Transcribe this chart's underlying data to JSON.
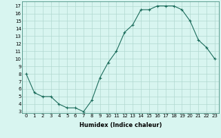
{
  "x": [
    0,
    1,
    2,
    3,
    4,
    5,
    6,
    7,
    8,
    9,
    10,
    11,
    12,
    13,
    14,
    15,
    16,
    17,
    18,
    19,
    20,
    21,
    22,
    23
  ],
  "y": [
    8.0,
    5.5,
    5.0,
    5.0,
    4.0,
    3.5,
    3.5,
    3.0,
    4.5,
    7.5,
    9.5,
    11.0,
    13.5,
    14.5,
    16.5,
    16.5,
    17.0,
    17.0,
    17.0,
    16.5,
    15.0,
    12.5,
    11.5,
    10.0
  ],
  "line_color": "#1a6b5a",
  "marker": "+",
  "marker_size": 3,
  "bg_color": "#d8f5f0",
  "grid_color": "#b0d8d0",
  "xlabel": "Humidex (Indice chaleur)",
  "ylabel": "",
  "title": "",
  "xlim": [
    -0.5,
    23.5
  ],
  "ylim": [
    2.8,
    17.6
  ],
  "yticks": [
    3,
    4,
    5,
    6,
    7,
    8,
    9,
    10,
    11,
    12,
    13,
    14,
    15,
    16,
    17
  ],
  "xticks": [
    0,
    1,
    2,
    3,
    4,
    5,
    6,
    7,
    8,
    9,
    10,
    11,
    12,
    13,
    14,
    15,
    16,
    17,
    18,
    19,
    20,
    21,
    22,
    23
  ],
  "tick_label_fontsize": 5,
  "xlabel_fontsize": 6,
  "line_width": 0.8
}
